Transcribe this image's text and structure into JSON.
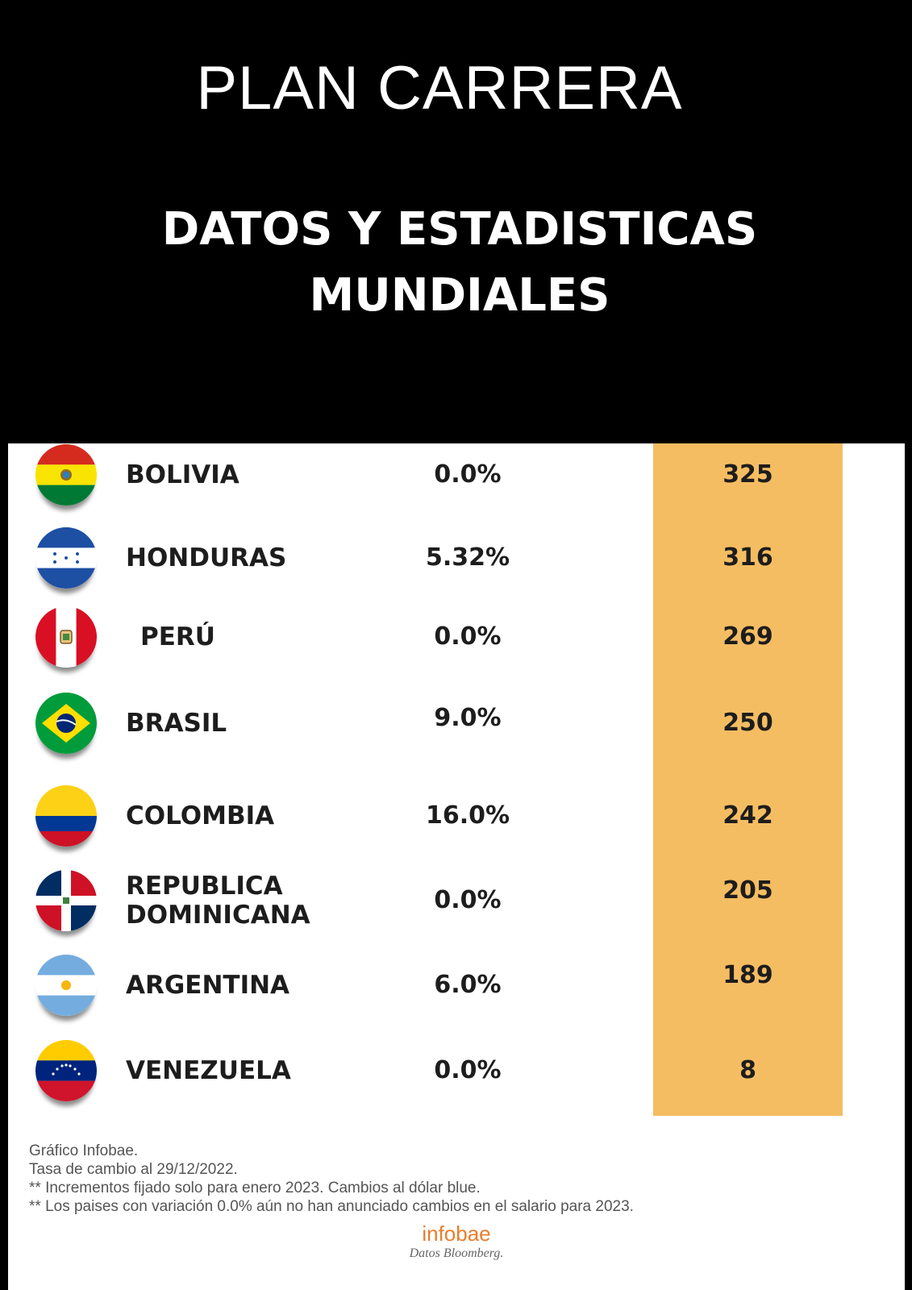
{
  "header": {
    "brand": "PLAN CARRERA",
    "headline_line1": "DATOS Y ESTADISTICAS",
    "headline_line2": "MUNDIALES"
  },
  "chart_data": {
    "type": "table",
    "columns": [
      "",
      "",
      ""
    ],
    "rows": [
      {
        "country": "BOLIVIA",
        "variation": "0.0%",
        "value": 325,
        "flag": "bolivia-flag-icon"
      },
      {
        "country": "HONDURAS",
        "variation": "5.32%",
        "value": 316,
        "flag": "honduras-flag-icon"
      },
      {
        "country": "PERÚ",
        "variation": "0.0%",
        "value": 269,
        "flag": "peru-flag-icon"
      },
      {
        "country": "BRASIL",
        "variation": "9.0%",
        "value": 250,
        "flag": "brazil-flag-icon"
      },
      {
        "country": "COLOMBIA",
        "variation": "16.0%",
        "value": 242,
        "flag": "colombia-flag-icon"
      },
      {
        "country": "REPUBLICA\nDOMINICANA",
        "variation": "0.0%",
        "value": 205,
        "flag": "dominican-republic-flag-icon"
      },
      {
        "country": "ARGENTINA",
        "variation": "6.0%",
        "value": 189,
        "flag": "argentina-flag-icon"
      },
      {
        "country": "VENEZUELA",
        "variation": "0.0%",
        "value": 8,
        "flag": "venezuela-flag-icon"
      }
    ],
    "highlight_color": "#f5bd62"
  },
  "footnotes": [
    "Gráfico Infobae.",
    "Tasa de cambio al 29/12/2022.",
    "** Incrementos fijado solo para enero 2023. Cambios al dólar blue.",
    "** Los paises con variación 0.0% aún no han anunciado cambios en el salario para 2023."
  ],
  "logo": {
    "name": "infobae",
    "source": "Datos Bloomberg."
  }
}
